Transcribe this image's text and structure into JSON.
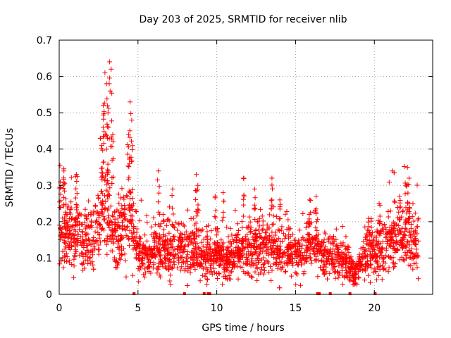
{
  "chart_data": {
    "type": "scatter",
    "title": "Day 203 of 2025, SRMTID for receiver nlib",
    "xlabel": "GPS time / hours",
    "ylabel": "SRMTID / TECUs",
    "xlim": [
      0,
      23.7
    ],
    "ylim": [
      0,
      0.7
    ],
    "grid": true,
    "marker": "+",
    "series_color": "#ff0000",
    "x_ticks": [
      0,
      5,
      10,
      15,
      20
    ],
    "x_tick_labels": [
      "0",
      "5",
      "10",
      "15",
      "20"
    ],
    "y_ticks": [
      0,
      0.1,
      0.2,
      0.3,
      0.4,
      0.5,
      0.6,
      0.7
    ],
    "y_tick_labels": [
      "0",
      "0.1",
      "0.2",
      "0.3",
      "0.4",
      "0.5",
      "0.6",
      "0.7"
    ],
    "trend": [
      [
        0.0,
        0.2
      ],
      [
        0.5,
        0.17
      ],
      [
        1.0,
        0.16
      ],
      [
        1.5,
        0.15
      ],
      [
        2.0,
        0.15
      ],
      [
        2.5,
        0.18
      ],
      [
        2.8,
        0.26
      ],
      [
        3.2,
        0.22
      ],
      [
        3.6,
        0.16
      ],
      [
        4.0,
        0.18
      ],
      [
        4.5,
        0.21
      ],
      [
        5.0,
        0.12
      ],
      [
        5.5,
        0.11
      ],
      [
        6.0,
        0.13
      ],
      [
        6.5,
        0.13
      ],
      [
        7.0,
        0.12
      ],
      [
        7.5,
        0.12
      ],
      [
        8.0,
        0.12
      ],
      [
        8.5,
        0.14
      ],
      [
        9.0,
        0.1
      ],
      [
        9.5,
        0.11
      ],
      [
        10.0,
        0.11
      ],
      [
        10.5,
        0.09
      ],
      [
        11.0,
        0.1
      ],
      [
        11.5,
        0.13
      ],
      [
        12.0,
        0.12
      ],
      [
        12.5,
        0.13
      ],
      [
        13.0,
        0.13
      ],
      [
        13.5,
        0.14
      ],
      [
        14.0,
        0.12
      ],
      [
        14.5,
        0.13
      ],
      [
        15.0,
        0.12
      ],
      [
        15.5,
        0.11
      ],
      [
        16.0,
        0.14
      ],
      [
        16.5,
        0.12
      ],
      [
        17.0,
        0.11
      ],
      [
        17.5,
        0.1
      ],
      [
        18.0,
        0.1
      ],
      [
        18.5,
        0.07
      ],
      [
        18.8,
        0.05
      ],
      [
        19.2,
        0.09
      ],
      [
        19.5,
        0.12
      ],
      [
        20.0,
        0.13
      ],
      [
        20.5,
        0.12
      ],
      [
        21.0,
        0.15
      ],
      [
        21.5,
        0.15
      ],
      [
        22.0,
        0.17
      ],
      [
        22.5,
        0.14
      ],
      [
        22.8,
        0.15
      ]
    ],
    "spikes": [
      [
        0.3,
        0.34
      ],
      [
        2.9,
        0.61
      ],
      [
        3.0,
        0.58
      ],
      [
        3.2,
        0.64
      ],
      [
        3.3,
        0.62
      ],
      [
        2.8,
        0.52
      ],
      [
        3.1,
        0.5
      ],
      [
        4.5,
        0.53
      ],
      [
        4.6,
        0.48
      ],
      [
        4.4,
        0.44
      ],
      [
        3.4,
        0.44
      ],
      [
        2.7,
        0.41
      ],
      [
        6.3,
        0.34
      ],
      [
        8.7,
        0.33
      ],
      [
        8.8,
        0.3
      ],
      [
        11.7,
        0.32
      ],
      [
        13.5,
        0.32
      ],
      [
        12.4,
        0.29
      ],
      [
        10.4,
        0.28
      ],
      [
        15.9,
        0.26
      ],
      [
        16.3,
        0.27
      ],
      [
        20.3,
        0.25
      ],
      [
        21.6,
        0.27
      ],
      [
        22.1,
        0.35
      ],
      [
        22.2,
        0.32
      ],
      [
        22.0,
        0.3
      ],
      [
        1.1,
        0.33
      ],
      [
        7.2,
        0.29
      ],
      [
        9.9,
        0.27
      ],
      [
        14.0,
        0.26
      ]
    ],
    "zero_points": [
      4.75,
      7.95,
      9.2,
      9.45,
      9.55,
      16.4,
      16.5,
      17.2,
      18.45,
      20.05
    ]
  }
}
